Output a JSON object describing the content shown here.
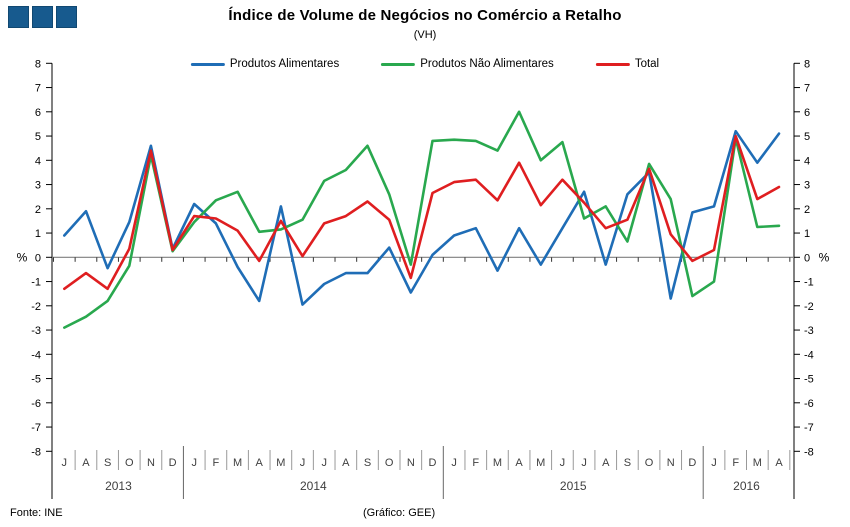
{
  "header": {
    "title": "Índice de Volume de Negócios no Comércio a Retalho",
    "subtitle": "(VH)",
    "brand_squares_color": "#175A8E",
    "brand_squares_count": 3
  },
  "legend": [
    {
      "label": "Produtos Alimentares",
      "color": "#1F6DB6"
    },
    {
      "label": "Produtos Não Alimentares",
      "color": "#29A84E"
    },
    {
      "label": "Total",
      "color": "#DF1E20"
    }
  ],
  "footer": {
    "source": "Fonte: INE",
    "credit": "(Gráfico: GEE)"
  },
  "chart_data": {
    "type": "line",
    "title": "Índice de Volume de Negócios no Comércio a Retalho",
    "subtitle": "(VH)",
    "ylabel": "%",
    "ylabel_right": "%",
    "ylim": [
      -8,
      8
    ],
    "y_step": 1,
    "grid": "zero-line-only",
    "legend_position": "top-center",
    "x_month_labels": [
      "J",
      "A",
      "S",
      "O",
      "N",
      "D",
      "J",
      "F",
      "M",
      "A",
      "M",
      "J",
      "J",
      "A",
      "S",
      "O",
      "N",
      "D",
      "J",
      "F",
      "M",
      "A",
      "M",
      "J",
      "J",
      "A",
      "S",
      "O",
      "N",
      "D",
      "J",
      "F",
      "M",
      "A"
    ],
    "year_groups": [
      {
        "label": "2013",
        "months": 6
      },
      {
        "label": "2014",
        "months": 12
      },
      {
        "label": "2015",
        "months": 12
      },
      {
        "label": "2016",
        "months": 4
      }
    ],
    "series": [
      {
        "name": "Produtos Alimentares",
        "color": "#1F6DB6",
        "values": [
          0.9,
          1.9,
          -0.45,
          1.45,
          4.6,
          0.35,
          2.2,
          1.4,
          -0.4,
          -1.8,
          2.1,
          -1.95,
          -1.1,
          -0.65,
          -0.65,
          0.4,
          -1.45,
          0.1,
          0.9,
          1.2,
          -0.55,
          1.2,
          -0.3,
          1.2,
          2.7,
          -0.3,
          2.6,
          3.5,
          -1.7,
          1.85,
          2.1,
          5.2,
          3.9,
          5.1
        ]
      },
      {
        "name": "Produtos Não Alimentares",
        "color": "#29A84E",
        "values": [
          -2.9,
          -2.45,
          -1.8,
          -0.35,
          4.2,
          0.25,
          1.45,
          2.35,
          2.7,
          1.05,
          1.15,
          1.55,
          3.15,
          3.6,
          4.6,
          2.6,
          -0.3,
          4.8,
          4.85,
          4.8,
          4.4,
          6.0,
          4.0,
          4.75,
          1.6,
          2.1,
          0.65,
          3.85,
          2.4,
          -1.6,
          -1.0,
          4.9,
          1.25,
          1.3
        ]
      },
      {
        "name": "Total",
        "color": "#DF1E20",
        "values": [
          -1.3,
          -0.65,
          -1.3,
          0.35,
          4.4,
          0.3,
          1.7,
          1.6,
          1.1,
          -0.15,
          1.5,
          0.05,
          1.4,
          1.7,
          2.3,
          1.55,
          -0.85,
          2.65,
          3.1,
          3.2,
          2.35,
          3.9,
          2.15,
          3.2,
          2.25,
          1.2,
          1.55,
          3.65,
          0.95,
          -0.15,
          0.3,
          5.0,
          2.4,
          2.9
        ]
      }
    ],
    "colors": {
      "axis": "#000000",
      "zero_line": "#7F7F7F",
      "month_separator": "#999999",
      "year_divider": "#666666",
      "tick": "#333333",
      "axis_text": "#000000",
      "month_text": "#3F3F3F"
    }
  }
}
